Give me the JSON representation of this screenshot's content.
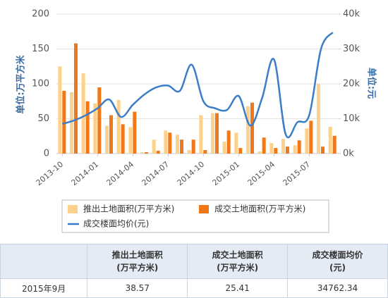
{
  "chart_data": {
    "type": "bar_line",
    "ylabel": "单位:万平方米",
    "y2label": "单位:元",
    "categories": [
      "2013-10",
      null,
      null,
      "2014-01",
      null,
      null,
      "2014-04",
      null,
      null,
      "2014-07",
      null,
      null,
      "2014-10",
      null,
      null,
      "2015-01",
      null,
      null,
      "2015-04",
      null,
      null,
      "2015-07",
      null,
      null
    ],
    "series": [
      {
        "name": "推出土地面积(万平方米)",
        "color": "#fdd08c",
        "type": "bar",
        "values": [
          125,
          88,
          115,
          72,
          40,
          77,
          38,
          2,
          20,
          33,
          27,
          5,
          55,
          58,
          17,
          30,
          68,
          3,
          15,
          21,
          12,
          36,
          100,
          38.57
        ]
      },
      {
        "name": "成交土地面积(万平方米)",
        "color": "#f07818",
        "type": "bar",
        "values": [
          90,
          158,
          75,
          95,
          55,
          42,
          60,
          2,
          4,
          30,
          20,
          20,
          5,
          58,
          33,
          8,
          73,
          23,
          8,
          10,
          19,
          47,
          10,
          25.41
        ]
      },
      {
        "name": "成交楼面均价(元)",
        "color": "#3a7dc9",
        "type": "line",
        "axis": "y2",
        "values": [
          8500,
          9500,
          11000,
          13000,
          15500,
          10500,
          14000,
          17000,
          19000,
          19500,
          18000,
          25500,
          15000,
          13000,
          12500,
          16500,
          8000,
          16000,
          27000,
          5500,
          9000,
          11000,
          30000,
          34762.34
        ]
      }
    ],
    "ylim": [
      0,
      200
    ],
    "yticks": [
      0,
      50,
      100,
      150,
      200
    ],
    "y2lim": [
      0,
      40000
    ],
    "y2ticks": [
      {
        "value": 0,
        "label": "0k"
      },
      {
        "value": 10000,
        "label": "10k"
      },
      {
        "value": 20000,
        "label": "20k"
      },
      {
        "value": 30000,
        "label": "30k"
      },
      {
        "value": 40000,
        "label": "40k"
      }
    ],
    "grid": true,
    "legend": "bottom"
  },
  "table": {
    "header": [
      [
        "推出土地面积",
        "(万平方米)"
      ],
      [
        "成交土地面积",
        "(万平方米)"
      ],
      [
        "成交楼面均价",
        "(元)"
      ]
    ],
    "rows": [
      [
        "2015年9月",
        "38.57",
        "25.41",
        "34762.34"
      ]
    ]
  }
}
